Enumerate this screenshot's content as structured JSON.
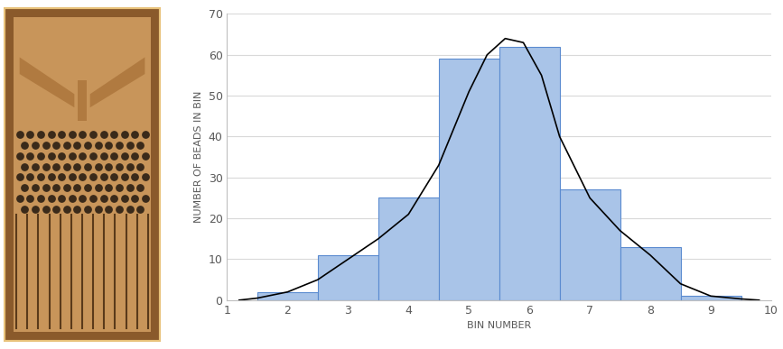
{
  "chart_data": {
    "type": "histogram",
    "x_label": "BIN NUMBER",
    "y_label": "NUMBER OF BEADS IN BIN",
    "bins": [
      1.5,
      2.5,
      3.5,
      4.5,
      5.5,
      6.5,
      7.5,
      8.5,
      9.5
    ],
    "values": [
      2,
      11,
      25,
      59,
      62,
      27,
      13,
      1
    ],
    "color": "#a9c4e8",
    "xlim": [
      1,
      10
    ],
    "xticks": [
      1,
      2,
      3,
      4,
      5,
      6,
      7,
      8,
      9,
      10
    ],
    "ylim": [
      0,
      70
    ],
    "yticks": [
      0,
      10,
      20,
      30,
      40,
      50,
      60,
      70
    ],
    "grid": true,
    "series": [
      {
        "type": "line",
        "color": "#000000",
        "x": [
          1.2,
          1.5,
          2.0,
          2.5,
          3.0,
          3.5,
          4.0,
          4.5,
          5.0,
          5.3,
          5.6,
          5.9,
          6.2,
          6.5,
          7.0,
          7.5,
          8.0,
          8.5,
          9.0,
          9.5,
          9.8
        ],
        "values": [
          0,
          0.5,
          2,
          5,
          10,
          15,
          21,
          33,
          51,
          60,
          64,
          63,
          55,
          40,
          25,
          17,
          11,
          4,
          1,
          0.3,
          0
        ]
      }
    ]
  }
}
